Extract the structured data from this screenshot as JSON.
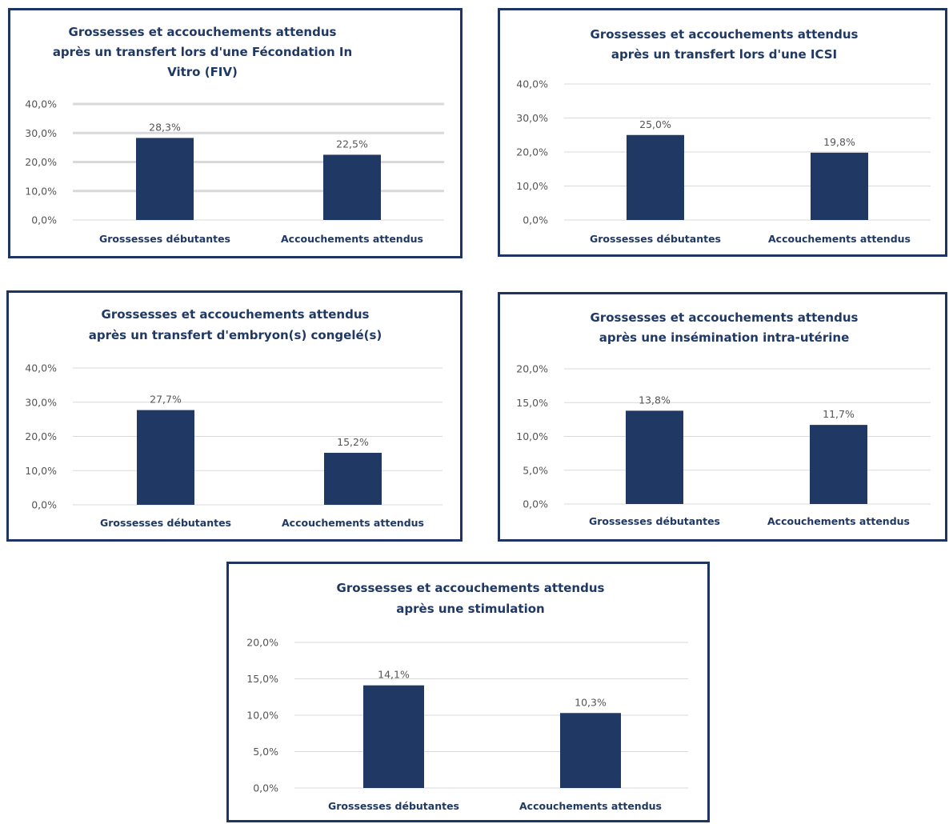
{
  "colors": {
    "bar": "#1f3864",
    "frame": "#1e3461",
    "title": "#1f3864",
    "grid": "#d9d9d9",
    "text": "#555555"
  },
  "chart_data": [
    {
      "type": "bar",
      "title_lines": [
        "Grossesses et accouchements attendus",
        "après un transfert lors d'une Fécondation In",
        "Vitro (FIV)"
      ],
      "categories": [
        "Grossesses débutantes",
        "Accouchements attendus"
      ],
      "values": [
        28.3,
        22.5
      ],
      "value_labels": [
        "28,3%",
        "22,5%"
      ],
      "yticks": [
        0,
        10,
        20,
        30,
        40
      ],
      "ytick_labels": [
        "0,0%",
        "10,0%",
        "20,0%",
        "30,0%",
        "40,0%"
      ],
      "ylim": [
        0,
        40
      ],
      "grid": true,
      "legend": "none",
      "xlabel": "",
      "ylabel": ""
    },
    {
      "type": "bar",
      "title_lines": [
        "Grossesses et accouchements attendus",
        "après un transfert lors d'une ICSI"
      ],
      "categories": [
        "Grossesses débutantes",
        "Accouchements attendus"
      ],
      "values": [
        25.0,
        19.8
      ],
      "value_labels": [
        "25,0%",
        "19,8%"
      ],
      "yticks": [
        0,
        10,
        20,
        30,
        40
      ],
      "ytick_labels": [
        "0,0%",
        "10,0%",
        "20,0%",
        "30,0%",
        "40,0%"
      ],
      "ylim": [
        0,
        40
      ],
      "grid": true,
      "legend": "none",
      "xlabel": "",
      "ylabel": ""
    },
    {
      "type": "bar",
      "title_lines": [
        "Grossesses et accouchements attendus",
        "après un transfert d'embryon(s) congelé(s)"
      ],
      "categories": [
        "Grossesses débutantes",
        "Accouchements attendus"
      ],
      "values": [
        27.7,
        15.2
      ],
      "value_labels": [
        "27,7%",
        "15,2%"
      ],
      "yticks": [
        0,
        10,
        20,
        30,
        40
      ],
      "ytick_labels": [
        "0,0%",
        "10,0%",
        "20,0%",
        "30,0%",
        "40,0%"
      ],
      "ylim": [
        0,
        40
      ],
      "grid": true,
      "legend": "none",
      "xlabel": "",
      "ylabel": ""
    },
    {
      "type": "bar",
      "title_lines": [
        "Grossesses et accouchements attendus",
        "après une insémination intra-utérine"
      ],
      "categories": [
        "Grossesses débutantes",
        "Accouchements attendus"
      ],
      "values": [
        13.8,
        11.7
      ],
      "value_labels": [
        "13,8%",
        "11,7%"
      ],
      "yticks": [
        0,
        5,
        10,
        15,
        20
      ],
      "ytick_labels": [
        "0,0%",
        "5,0%",
        "10,0%",
        "15,0%",
        "20,0%"
      ],
      "ylim": [
        0,
        20
      ],
      "grid": true,
      "legend": "none",
      "xlabel": "",
      "ylabel": ""
    },
    {
      "type": "bar",
      "title_lines": [
        "Grossesses et accouchements attendus",
        "après une stimulation"
      ],
      "categories": [
        "Grossesses débutantes",
        "Accouchements attendus"
      ],
      "values": [
        14.1,
        10.3
      ],
      "value_labels": [
        "14,1%",
        "10,3%"
      ],
      "yticks": [
        0,
        5,
        10,
        15,
        20
      ],
      "ytick_labels": [
        "0,0%",
        "5,0%",
        "10,0%",
        "15,0%",
        "20,0%"
      ],
      "ylim": [
        0,
        20
      ],
      "grid": true,
      "legend": "none",
      "xlabel": "",
      "ylabel": ""
    }
  ]
}
